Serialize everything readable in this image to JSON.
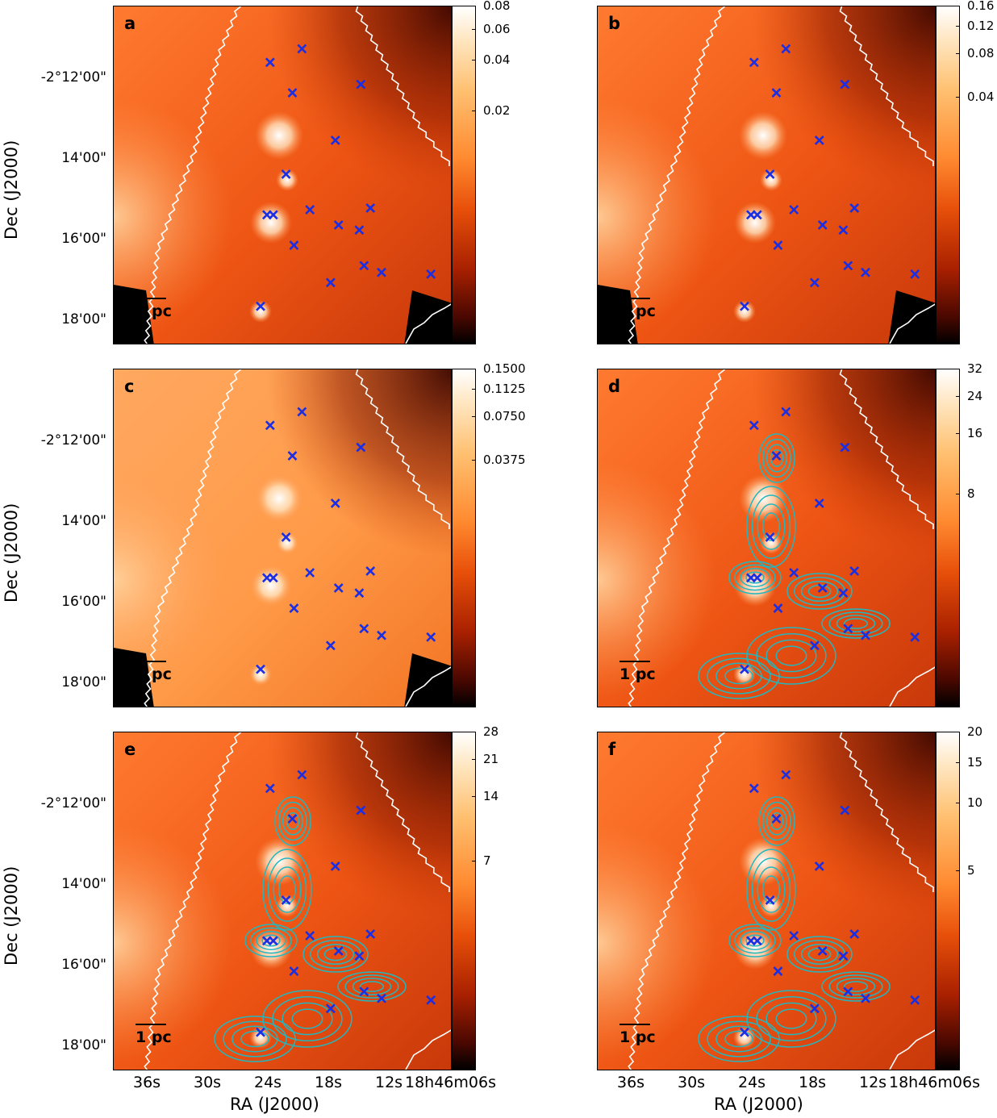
{
  "panels": [
    {
      "letter": "a",
      "scale": "pc",
      "cbar_ticks": [
        "0.08",
        "0.06",
        "0.04",
        "0.02"
      ],
      "cbar_tick_fracs": [
        0.0,
        0.07,
        0.16,
        0.31
      ],
      "contours": false
    },
    {
      "letter": "b",
      "scale": "pc",
      "cbar_ticks": [
        "0.16",
        "0.12",
        "0.08",
        "0.04"
      ],
      "cbar_tick_fracs": [
        0.0,
        0.06,
        0.14,
        0.27
      ],
      "contours": false
    },
    {
      "letter": "c",
      "scale": "pc",
      "cbar_ticks": [
        "0.1500",
        "0.1125",
        "0.0750",
        "0.0375"
      ],
      "cbar_tick_fracs": [
        0.0,
        0.06,
        0.14,
        0.27
      ],
      "contours": false
    },
    {
      "letter": "d",
      "scale": "1 pc",
      "cbar_ticks": [
        "32",
        "24",
        "16",
        "8"
      ],
      "cbar_tick_fracs": [
        0.0,
        0.08,
        0.19,
        0.37
      ],
      "contours": true
    },
    {
      "letter": "e",
      "scale": "1 pc",
      "cbar_ticks": [
        "28",
        "21",
        "14",
        "7"
      ],
      "cbar_tick_fracs": [
        0.0,
        0.08,
        0.19,
        0.38
      ],
      "contours": true
    },
    {
      "letter": "f",
      "scale": "1 pc",
      "cbar_ticks": [
        "20",
        "15",
        "10",
        "5"
      ],
      "cbar_tick_fracs": [
        0.0,
        0.09,
        0.21,
        0.41
      ],
      "contours": true
    }
  ],
  "dec_ticks": [
    "-2°12'00\"",
    "14'00\"",
    "16'00\"",
    "18'00\""
  ],
  "dec_axis_title": "Dec (J2000)",
  "ra_ticks": [
    "36s",
    "30s",
    "24s",
    "18s",
    "12s",
    "18h46m06s"
  ],
  "ra_axis_title": "RA (J2000)",
  "colors": {
    "marker": "#1a2ee6",
    "contour": "#22b7bf",
    "boundary": "#ffffff"
  },
  "markers_data_units": {
    "note_units": "pixel-free sources in RA seconds offset and Dec arcsec not printed",
    "sources": [
      [
        0.465,
        0.165
      ],
      [
        0.565,
        0.125
      ],
      [
        0.535,
        0.255
      ],
      [
        0.75,
        0.23
      ],
      [
        0.67,
        0.395
      ],
      [
        0.515,
        0.495
      ],
      [
        0.475,
        0.615
      ],
      [
        0.455,
        0.615
      ],
      [
        0.59,
        0.6
      ],
      [
        0.68,
        0.645
      ],
      [
        0.745,
        0.66
      ],
      [
        0.78,
        0.595
      ],
      [
        0.54,
        0.705
      ],
      [
        0.76,
        0.765
      ],
      [
        0.815,
        0.785
      ],
      [
        0.655,
        0.815
      ],
      [
        0.97,
        0.79
      ],
      [
        0.435,
        0.885
      ]
    ]
  }
}
